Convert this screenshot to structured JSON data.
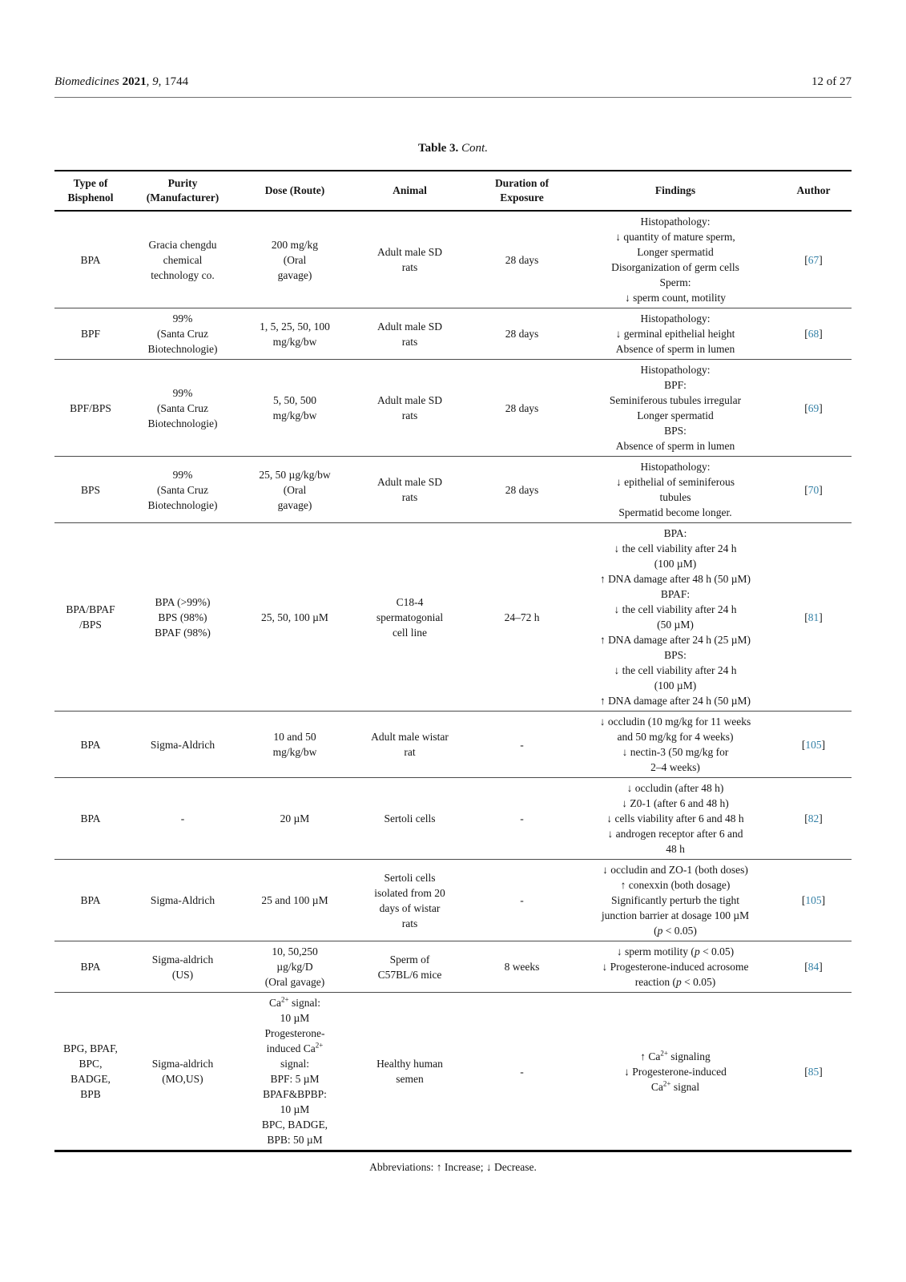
{
  "colors": {
    "citation": "#3380a6",
    "rule": "#6f6f6f"
  },
  "header": {
    "journal_pieces": [
      {
        "t": "Biomedicines ",
        "style": "i"
      },
      {
        "t": "2021",
        "style": "b"
      },
      {
        "t": ", ",
        "style": ""
      },
      {
        "t": "9",
        "style": "i"
      },
      {
        "t": ", 1744",
        "style": ""
      }
    ],
    "page_number": "12 of 27"
  },
  "caption_pieces": [
    {
      "t": "Table 3. ",
      "style": "b"
    },
    {
      "t": "Cont.",
      "style": "i"
    }
  ],
  "table": {
    "columns": [
      [
        "Type of",
        "Bisphenol"
      ],
      [
        "Purity",
        "(Manufacturer)"
      ],
      [
        "Dose (Route)"
      ],
      [
        "Animal"
      ],
      [
        "Duration of",
        "Exposure"
      ],
      [
        "Findings"
      ],
      [
        "Author"
      ]
    ],
    "rows": [
      {
        "type": [
          "BPA"
        ],
        "purity": [
          "Gracia chengdu",
          "chemical",
          "technology co."
        ],
        "dose": [
          "200 mg/kg",
          "(Oral",
          "gavage)"
        ],
        "animal": [
          "Adult male SD",
          "rats"
        ],
        "duration": [
          "28 days"
        ],
        "findings": [
          "Histopathology:",
          "↓ quantity of mature sperm,",
          "Longer spermatid",
          "Disorganization of germ cells",
          "Sperm:",
          "↓ sperm count, motility"
        ],
        "ref": [
          "[67]"
        ]
      },
      {
        "type": [
          "BPF"
        ],
        "purity": [
          "99%",
          "(Santa Cruz",
          "Biotechnologie)"
        ],
        "dose": [
          "1, 5, 25, 50, 100",
          "mg/kg/bw"
        ],
        "animal": [
          "Adult male SD",
          "rats"
        ],
        "duration": [
          "28 days"
        ],
        "findings": [
          "Histopathology:",
          "↓ germinal epithelial height",
          "Absence of sperm in lumen"
        ],
        "ref": [
          "[68]"
        ]
      },
      {
        "type": [
          "BPF/BPS"
        ],
        "purity": [
          "99%",
          "(Santa Cruz",
          "Biotechnologie)"
        ],
        "dose": [
          "5, 50, 500",
          "mg/kg/bw"
        ],
        "animal": [
          "Adult male SD",
          "rats"
        ],
        "duration": [
          "28 days"
        ],
        "findings": [
          "Histopathology:",
          "BPF:",
          "Seminiferous tubules irregular",
          "Longer spermatid",
          "BPS:",
          "Absence of sperm in lumen"
        ],
        "ref": [
          "[69]"
        ]
      },
      {
        "type": [
          "BPS"
        ],
        "purity": [
          "99%",
          "(Santa Cruz",
          "Biotechnologie)"
        ],
        "dose": [
          "25, 50 µg/kg/bw",
          "(Oral",
          "gavage)"
        ],
        "animal": [
          "Adult male SD",
          "rats"
        ],
        "duration": [
          "28 days"
        ],
        "findings": [
          "Histopathology:",
          "↓ epithelial of seminiferous",
          "tubules",
          "Spermatid become longer."
        ],
        "ref": [
          "[70]"
        ]
      },
      {
        "type": [
          "BPA/BPAF",
          "/BPS"
        ],
        "purity": [
          "BPA (>99%)",
          "BPS (98%)",
          "BPAF (98%)"
        ],
        "dose": [
          "25, 50, 100 µM"
        ],
        "animal": [
          "C18-4",
          "spermatogonial",
          "cell line"
        ],
        "duration": [
          "24–72 h"
        ],
        "findings": [
          "BPA:",
          "↓ the cell viability after 24 h",
          "(100 µM)",
          "↑ DNA damage after 48 h (50 µM)",
          "BPAF:",
          "↓ the cell viability after 24 h",
          "(50 µM)",
          "↑ DNA damage after 24 h (25 µM)",
          "BPS:",
          "↓ the cell viability after 24 h",
          "(100 µM)",
          "↑ DNA damage after 24 h (50 µM)"
        ],
        "ref": [
          "[81]"
        ]
      },
      {
        "type": [
          "BPA"
        ],
        "purity": [
          "Sigma-Aldrich"
        ],
        "dose": [
          "10 and 50",
          "mg/kg/bw"
        ],
        "animal": [
          "Adult male wistar",
          "rat"
        ],
        "duration": [
          "-"
        ],
        "findings": [
          "↓ occludin (10 mg/kg for 11 weeks",
          "and 50 mg/kg for 4 weeks)",
          "↓ nectin-3 (50 mg/kg for",
          "2–4 weeks)"
        ],
        "ref": [
          "[105]"
        ]
      },
      {
        "type": [
          "BPA"
        ],
        "purity": [
          "-"
        ],
        "dose": [
          "20 µM"
        ],
        "animal": [
          "Sertoli cells"
        ],
        "duration": [
          "-"
        ],
        "findings": [
          "↓ occludin (after 48 h)",
          "↓ Z0-1 (after 6 and 48 h)",
          "↓ cells viability after 6 and 48 h",
          "↓ androgen receptor after 6 and",
          "48 h"
        ],
        "ref": [
          "[82]"
        ]
      },
      {
        "type": [
          "BPA"
        ],
        "purity": [
          "Sigma-Aldrich"
        ],
        "dose": [
          "25 and 100 µM"
        ],
        "animal": [
          "Sertoli cells",
          "isolated from 20",
          "days of wistar",
          "rats"
        ],
        "duration": [
          "-"
        ],
        "findings": [
          "↓ occludin and ZO-1 (both doses)",
          "↑ conexxin (both dosage)",
          "Significantly perturb the tight",
          "junction barrier at dosage 100 µM",
          "(*p* < 0.05)"
        ],
        "ref": [
          "[105]"
        ]
      },
      {
        "type": [
          "BPA"
        ],
        "purity": [
          "Sigma-aldrich",
          "(US)"
        ],
        "dose": [
          "10, 50,250",
          "µg/kg/D",
          "(Oral gavage)"
        ],
        "animal": [
          "Sperm of",
          "C57BL/6 mice"
        ],
        "duration": [
          "8 weeks"
        ],
        "findings": [
          "↓ sperm motility (*p* < 0.05)",
          "↓ Progesterone-induced acrosome",
          "reaction (*p* < 0.05)"
        ],
        "ref": [
          "[84]"
        ]
      },
      {
        "type": [
          "BPG, BPAF,",
          "BPC,",
          "BADGE,",
          "BPB"
        ],
        "purity": [
          "Sigma-aldrich",
          "(MO,US)"
        ],
        "dose": [
          "Ca^{2+} signal:",
          "10 µM",
          "Progesterone-",
          "induced Ca^{2+}",
          "signal:",
          "BPF: 5 µM",
          "BPAF&BPBP:",
          "10 µM",
          "BPC, BADGE,",
          "BPB: 50 µM"
        ],
        "animal": [
          "Healthy human",
          "semen"
        ],
        "duration": [
          "-"
        ],
        "findings": [
          "↑ Ca^{2+} signaling",
          "↓ Progesterone-induced",
          "Ca^{2+} signal"
        ],
        "ref": [
          "[85]"
        ]
      }
    ]
  },
  "footnote": "Abbreviations: ↑ Increase; ↓ Decrease."
}
